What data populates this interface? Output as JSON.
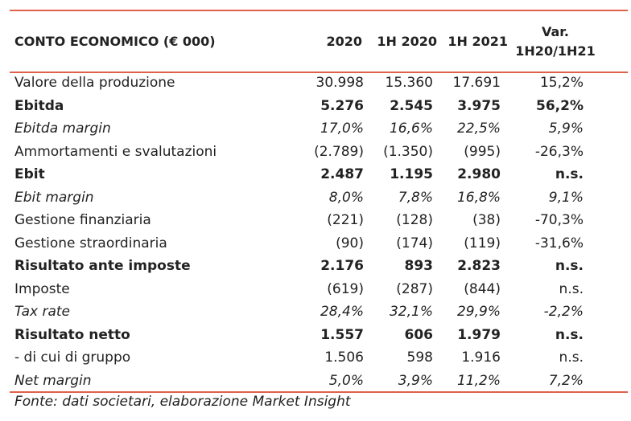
{
  "header": {
    "title": "CONTO ECONOMICO (€ 000)",
    "columns": [
      "2020",
      "1H 2020",
      "1H 2021"
    ],
    "var_label": [
      "Var.",
      "1H20/1H21"
    ]
  },
  "table": {
    "rows": [
      [
        "Valore della produzione",
        "30.998",
        "15.360",
        "17.691",
        "15,2%"
      ],
      [
        "Ebitda",
        "5.276",
        "2.545",
        "3.975",
        "56,2%"
      ],
      [
        "Ebitda margin",
        "17,0%",
        "16,6%",
        "22,5%",
        "5,9%"
      ],
      [
        "Ammortamenti e svalutazioni",
        "(2.789)",
        "(1.350)",
        "(995)",
        "-26,3%"
      ],
      [
        "Ebit",
        "2.487",
        "1.195",
        "2.980",
        "n.s."
      ],
      [
        "Ebit margin",
        "8,0%",
        "7,8%",
        "16,8%",
        "9,1%"
      ],
      [
        "Gestione finanziaria",
        "(221)",
        "(128)",
        "(38)",
        "-70,3%"
      ],
      [
        "Gestione straordinaria",
        "(90)",
        "(174)",
        "(119)",
        "-31,6%"
      ],
      [
        "Risultato ante imposte",
        "2.176",
        "893",
        "2.823",
        "n.s."
      ],
      [
        "Imposte",
        "(619)",
        "(287)",
        "(844)",
        "n.s."
      ],
      [
        "Tax rate",
        "28,4%",
        "32,1%",
        "29,9%",
        "-2,2%"
      ],
      [
        "Risultato netto",
        "1.557",
        "606",
        "1.979",
        "n.s."
      ],
      [
        "- di cui di gruppo",
        "1.506",
        "598",
        "1.916",
        "n.s."
      ],
      [
        "Net margin",
        "5,0%",
        "3,9%",
        "11,2%",
        "7,2%"
      ]
    ]
  },
  "footer": "Fonte: dati societari, elaborazione Market Insight"
}
